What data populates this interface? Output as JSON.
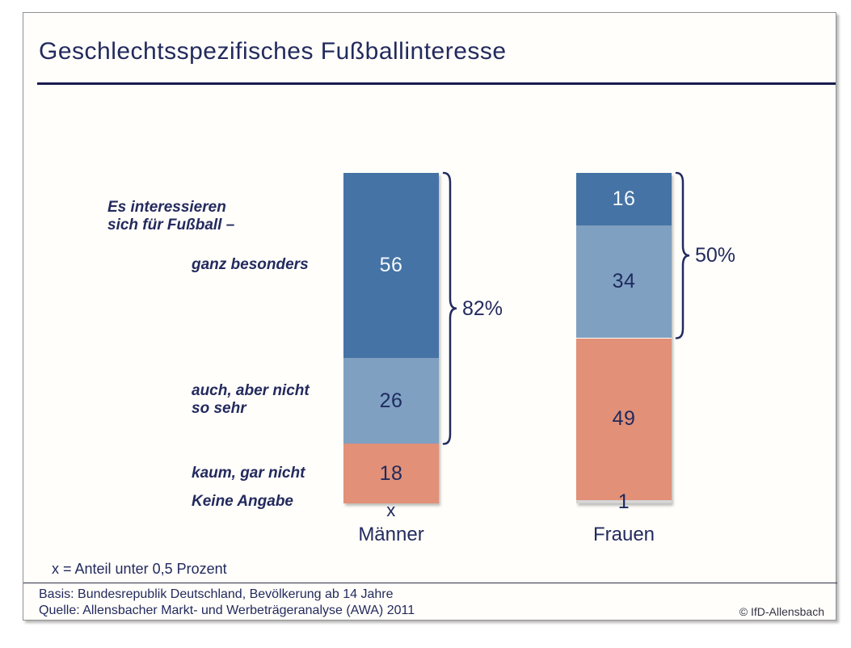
{
  "title": "Geschlechtsspezifisches Fußballinteresse",
  "intro_label": {
    "line1": "Es interessieren",
    "line2": "sich für Fußball –"
  },
  "chart_data": {
    "type": "bar",
    "stacked": true,
    "unit": "Prozent",
    "ylim": [
      0,
      100
    ],
    "categories": [
      "Männer",
      "Frauen"
    ],
    "series": [
      {
        "name": "ganz besonders",
        "values": [
          56,
          16
        ],
        "color": "#4573a5",
        "value_color": "#f4f8fd"
      },
      {
        "name": "auch, aber nicht so sehr",
        "values": [
          26,
          34
        ],
        "color": "#7fa0c1",
        "value_color": "#1e2a5e"
      },
      {
        "name": "kaum, gar nicht",
        "values": [
          18,
          49
        ],
        "color": "#e29077",
        "value_color": "#1e2a5e"
      },
      {
        "name": "Keine Angabe",
        "values": [
          "x",
          1
        ],
        "color": "#d5d5d5",
        "value_color": "#1e2a5e"
      }
    ],
    "row_labels": [
      {
        "lines": [
          "ganz besonders"
        ]
      },
      {
        "lines": [
          "auch, aber nicht",
          "so sehr"
        ]
      },
      {
        "lines": [
          "kaum, gar nicht"
        ]
      },
      {
        "lines": [
          "Keine Angabe"
        ]
      }
    ],
    "brackets": [
      {
        "bar": 0,
        "from_segment": 0,
        "to_segment": 1,
        "label": "82%"
      },
      {
        "bar": 1,
        "from_segment": 0,
        "to_segment": 1,
        "label": "50%"
      }
    ]
  },
  "footnote": "x = Anteil unter 0,5 Prozent",
  "source": {
    "basis": "Basis: Bundesrepublik Deutschland, Bevölkerung ab 14 Jahre",
    "quelle": "Quelle: Allensbacher Markt- und Werbeträgeranalyse (AWA) 2011",
    "copyright": "© IfD-Allensbach"
  },
  "colors": {
    "navy": "#232a5e",
    "dark_blue": "#4573a5",
    "light_blue": "#7fa0c1",
    "salmon": "#e29077",
    "shadow_gray": "#d5d5d5",
    "frame_background": "#fffefa"
  }
}
